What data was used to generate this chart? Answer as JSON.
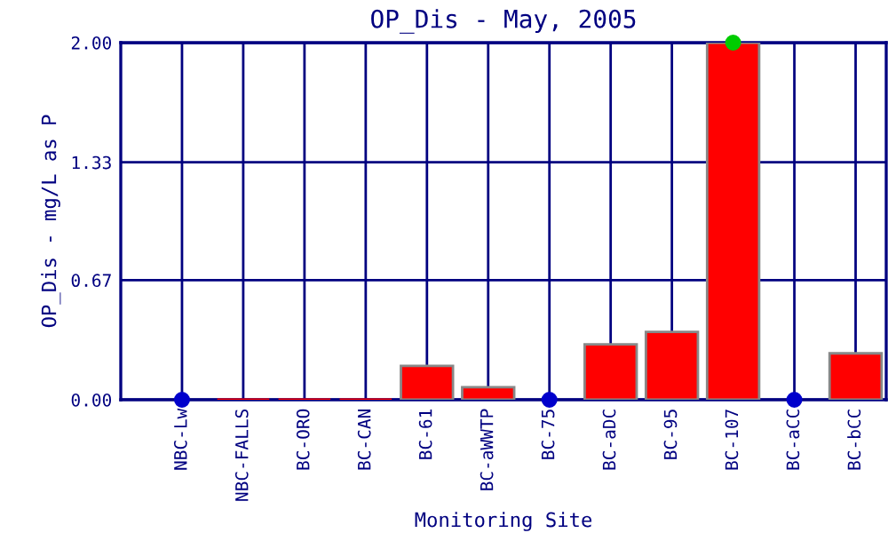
{
  "chart_data": {
    "type": "bar",
    "title": "OP_Dis - May, 2005",
    "xlabel": "Monitoring Site",
    "ylabel": "OP_Dis - mg/L as P",
    "categories": [
      "NBC-Lw",
      "NBC-FALLS",
      "BC-ORO",
      "BC-CAN",
      "BC-61",
      "BC-aWWTP",
      "BC-75",
      "BC-aDC",
      "BC-95",
      "BC-107",
      "BC-aCC",
      "BC-bCC"
    ],
    "series": [
      {
        "color": "#ff0000",
        "values": [
          null,
          0,
          0,
          0,
          0.19,
          0.07,
          null,
          0.31,
          0.38,
          2.0,
          null,
          0.26
        ]
      },
      {
        "type": "scatter",
        "color": "#0000cc",
        "values": [
          0,
          null,
          null,
          null,
          null,
          null,
          0,
          null,
          null,
          null,
          0,
          null
        ]
      },
      {
        "type": "scatter",
        "color": "#00cc00",
        "values": [
          null,
          null,
          null,
          null,
          null,
          null,
          null,
          null,
          null,
          2.0,
          null,
          null
        ]
      }
    ],
    "ylim": [
      0,
      2.0
    ],
    "yticks": [
      {
        "value": 0,
        "label": "0.00"
      },
      {
        "value": 0.67,
        "label": "0.67"
      },
      {
        "value": 1.33,
        "label": "1.33"
      },
      {
        "value": 2.0,
        "label": "2.00"
      }
    ],
    "grid": true,
    "marker": "circle"
  }
}
